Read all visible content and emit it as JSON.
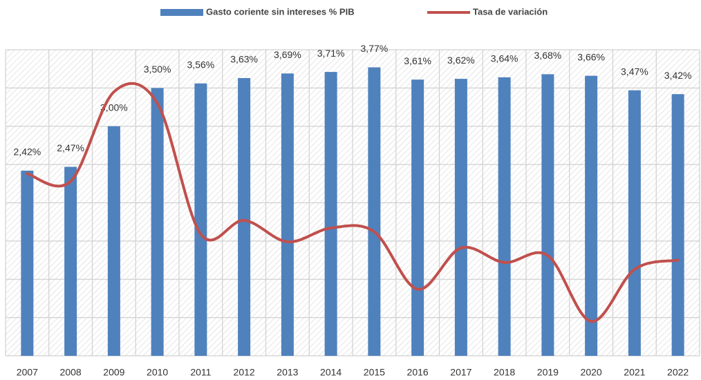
{
  "chart_data": {
    "type": "bar",
    "categories": [
      "2007",
      "2008",
      "2009",
      "2010",
      "2011",
      "2012",
      "2013",
      "2014",
      "2015",
      "2016",
      "2017",
      "2018",
      "2019",
      "2020",
      "2021",
      "2022"
    ],
    "series": [
      {
        "name": "Gasto coriente sin intereses % PIB",
        "type": "bar",
        "color": "#4f81bd",
        "values": [
          2.42,
          2.47,
          3.0,
          3.5,
          3.56,
          3.63,
          3.69,
          3.71,
          3.77,
          3.61,
          3.62,
          3.64,
          3.68,
          3.66,
          3.47,
          3.42
        ],
        "value_labels": [
          "2,42%",
          "2,47%",
          "3,00%",
          "3,50%",
          "3,56%",
          "3,63%",
          "3,69%",
          "3,71%",
          "3,77%",
          "3,61%",
          "3,62%",
          "3,64%",
          "3,68%",
          "3,66%",
          "3,47%",
          "3,42%"
        ]
      },
      {
        "name": "Tasa de variación",
        "type": "line",
        "color": "#c0504d",
        "values": [
          2.38,
          2.28,
          3.45,
          3.3,
          1.59,
          1.77,
          1.49,
          1.67,
          1.62,
          0.87,
          1.41,
          1.22,
          1.31,
          0.45,
          1.13,
          1.25
        ]
      }
    ],
    "ylim": [
      0,
      4
    ],
    "yticks": [
      0,
      0.5,
      1,
      1.5,
      2,
      2.5,
      3,
      3.5,
      4
    ],
    "grid": true,
    "tick_labels": false,
    "legend": "top"
  }
}
